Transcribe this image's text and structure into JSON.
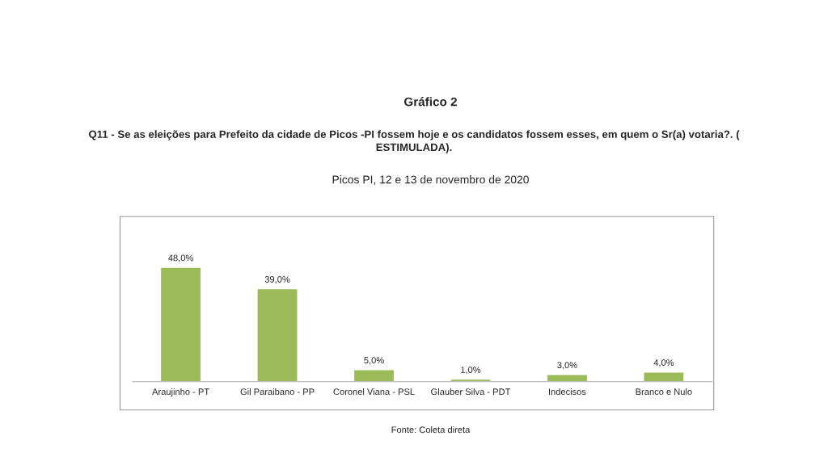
{
  "chart_data": {
    "type": "bar",
    "title": "Gráfico 2",
    "subtitle": "Q11 - Se as eleições para Prefeito da cidade de Picos -PI fossem hoje e os candidatos fossem esses, em quem o Sr(a) votaria?. (\nESTIMULADA).",
    "annotations": [
      "Picos PI, 12 e 13 de novembro de 2020",
      "Fonte: Coleta direta"
    ],
    "categories": [
      "Araujinho - PT",
      "Gil Paraibano - PP",
      "Coronel Viana - PSL",
      "Glauber Silva - PDT",
      "Indecisos",
      "Branco e Nulo"
    ],
    "values": [
      48.0,
      39.0,
      5.0,
      1.0,
      3.0,
      4.0
    ],
    "value_labels": [
      "48,0%",
      "39,0%",
      "5,0%",
      "1,0%",
      "3,0%",
      "4,0%"
    ],
    "color": "#9bbb59",
    "tick_labels": "x",
    "grid": false,
    "legend": false
  }
}
